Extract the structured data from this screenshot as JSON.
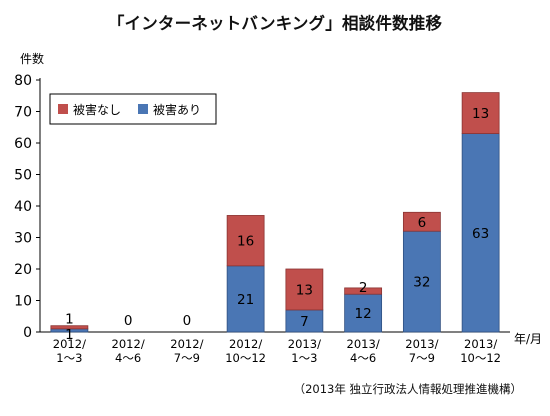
{
  "chart_data": {
    "type": "bar",
    "stacked": true,
    "title": "「インターネットバンキング」相談件数推移",
    "ylabel": "件数",
    "xlabel": "年/月",
    "ylim": [
      0,
      80
    ],
    "yticks": [
      0,
      10,
      20,
      30,
      40,
      50,
      60,
      70,
      80
    ],
    "grid": false,
    "legend_position": "top-left",
    "categories": [
      [
        "2012/",
        "1～3"
      ],
      [
        "2012/",
        "4～6"
      ],
      [
        "2012/",
        "7～9"
      ],
      [
        "2012/",
        "10～12"
      ],
      [
        "2013/",
        "1～3"
      ],
      [
        "2013/",
        "4～6"
      ],
      [
        "2013/",
        "7～9"
      ],
      [
        "2013/",
        "10～12"
      ]
    ],
    "series": [
      {
        "name": "被害あり",
        "color": "#4a76b4",
        "values": [
          1,
          0,
          0,
          21,
          7,
          12,
          32,
          63
        ]
      },
      {
        "name": "被害なし",
        "color": "#c04f4c",
        "values": [
          1,
          0,
          0,
          16,
          13,
          2,
          6,
          13
        ]
      }
    ],
    "legend_order": [
      1,
      0
    ],
    "source": "（2013年 独立行政法人情報処理推進機構）"
  }
}
